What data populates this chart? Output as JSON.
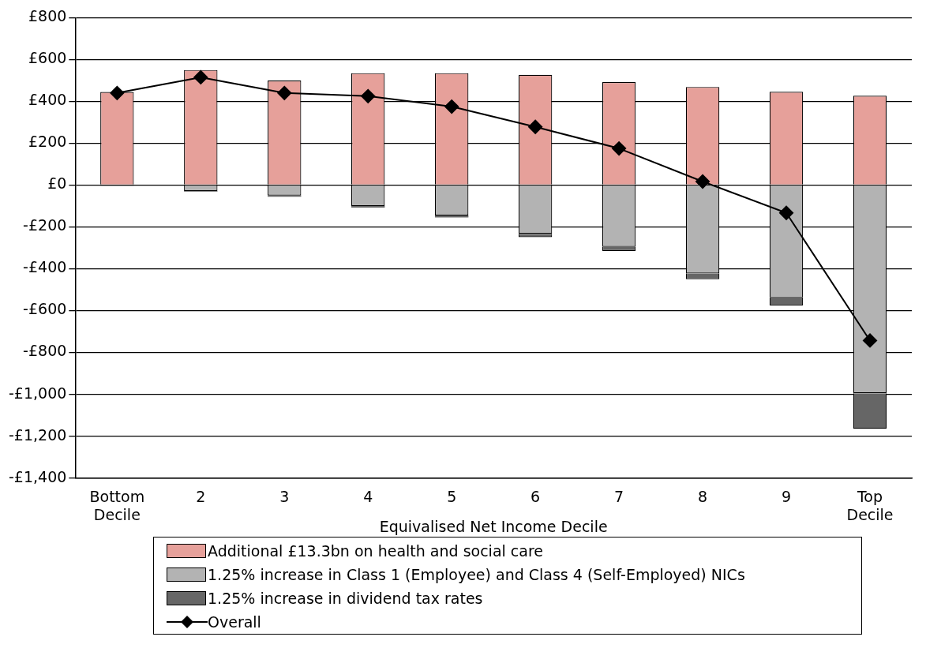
{
  "chart_data": {
    "type": "bar",
    "stacked": true,
    "xlabel": "Equivalised Net Income Decile",
    "categories": [
      "Bottom Decile",
      "2",
      "3",
      "4",
      "5",
      "6",
      "7",
      "8",
      "9",
      "Top Decile"
    ],
    "series": [
      {
        "name": "Additional £13.3bn on health and social care",
        "color": "#e6a09a",
        "values": [
          445,
          550,
          500,
          535,
          535,
          527,
          492,
          469,
          446,
          427
        ]
      },
      {
        "name": "1.25% increase in Class 1 (Employee) and Class 4 (Self-Employed) NICs",
        "color": "#b3b3b3",
        "values": [
          -3,
          -28,
          -50,
          -100,
          -145,
          -233,
          -295,
          -422,
          -537,
          -995
        ]
      },
      {
        "name": "1.25% increase in dividend tax rates",
        "color": "#666666",
        "values": [
          -1,
          -3,
          -6,
          -8,
          -10,
          -16,
          -20,
          -28,
          -38,
          -170
        ]
      },
      {
        "name": "Overall",
        "type": "line",
        "color": "#000000",
        "marker": "diamond",
        "values": [
          440,
          515,
          440,
          425,
          375,
          278,
          175,
          17,
          -133,
          -743
        ]
      }
    ],
    "ylim": [
      -1400,
      800
    ],
    "yticks": [
      {
        "value": 800,
        "label": "£800"
      },
      {
        "value": 600,
        "label": "£600"
      },
      {
        "value": 400,
        "label": "£400"
      },
      {
        "value": 200,
        "label": "£200"
      },
      {
        "value": 0,
        "label": "£0"
      },
      {
        "value": -200,
        "label": "-£200"
      },
      {
        "value": -400,
        "label": "-£400"
      },
      {
        "value": -600,
        "label": "-£600"
      },
      {
        "value": -800,
        "label": "-£800"
      },
      {
        "value": -1000,
        "label": "-£1,000"
      },
      {
        "value": -1200,
        "label": "-£1,200"
      },
      {
        "value": -1400,
        "label": "-£1,400"
      }
    ],
    "grid": "y",
    "legend": "bottom"
  }
}
